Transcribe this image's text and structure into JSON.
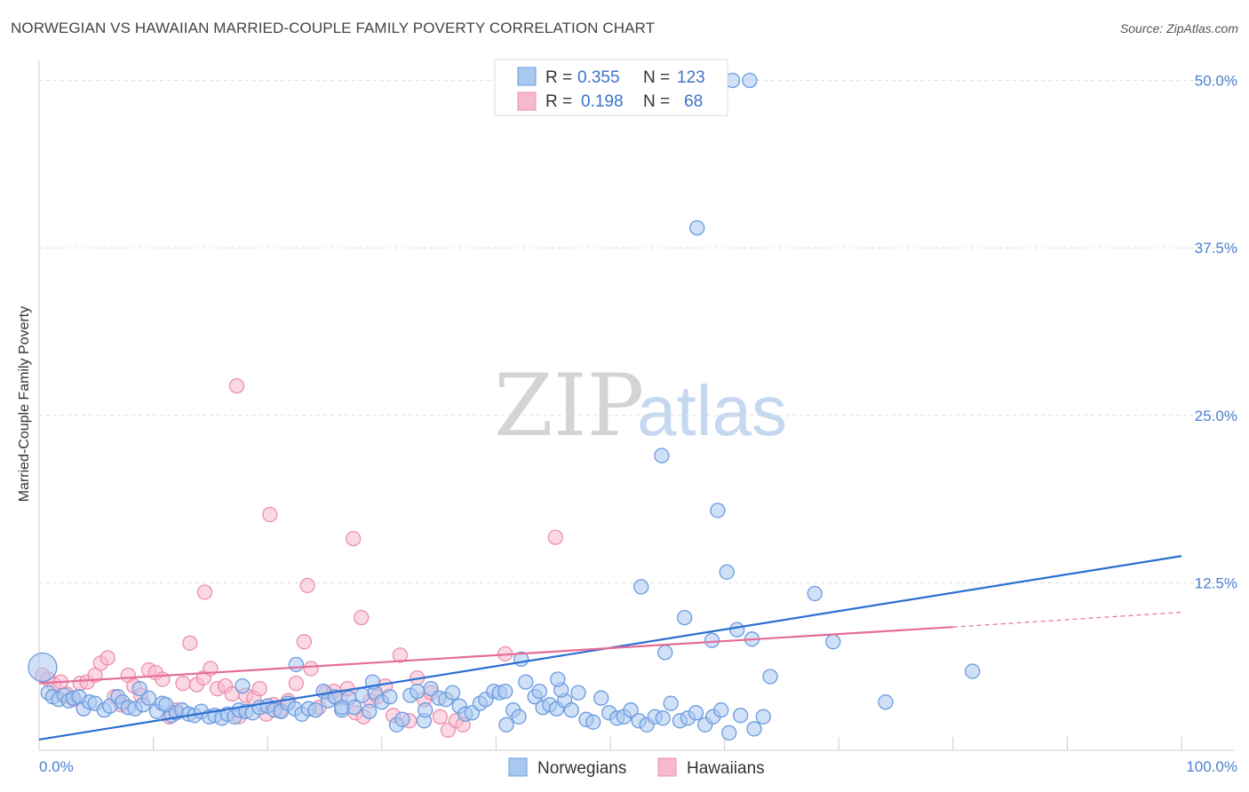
{
  "title": "NORWEGIAN VS HAWAIIAN MARRIED-COUPLE FAMILY POVERTY CORRELATION CHART",
  "source": "Source: ZipAtlas.com",
  "watermark": {
    "zip": "ZIP",
    "atlas": "atlas"
  },
  "colors": {
    "norwegian_fill": "#a9c8f0",
    "norwegian_stroke": "#6a9be0",
    "norwegian_line": "#2b6fd1",
    "hawaiian_fill": "#f7b9cd",
    "hawaiian_stroke": "#ec8eae",
    "hawaiian_line": "#e56d96",
    "tick_label": "#4a7fd0",
    "grid": "#dddddd"
  },
  "legend": {
    "rows": [
      {
        "r_label": "R =",
        "r_value": "0.355",
        "n_label": "N =",
        "n_value": "123"
      },
      {
        "r_label": "R =",
        "r_value": "0.198",
        "n_label": "N =",
        "n_value": "68"
      }
    ]
  },
  "bottom_legend": [
    "Norwegians",
    "Hawaiians"
  ],
  "chart_data": {
    "type": "scatter",
    "title": "NORWEGIAN VS HAWAIIAN MARRIED-COUPLE FAMILY POVERTY CORRELATION CHART",
    "xlabel": "",
    "ylabel": "Married-Couple Family Poverty",
    "xlim": [
      0,
      100
    ],
    "ylim": [
      0,
      51.5
    ],
    "x_tick_labels": [
      "0.0%",
      "100.0%"
    ],
    "y_ticks": [
      12.5,
      25.0,
      37.5,
      50.0
    ],
    "y_tick_labels": [
      "12.5%",
      "25.0%",
      "37.5%",
      "50.0%"
    ],
    "grid": true,
    "legend_position": "top-center",
    "series": [
      {
        "name": "Norwegians",
        "R": 0.355,
        "N": 123,
        "trend": {
          "x": [
            0,
            100
          ],
          "y": [
            0.8,
            14.5
          ]
        },
        "points": [
          [
            0.3,
            6.2
          ],
          [
            0.8,
            4.3
          ],
          [
            1.2,
            4.0
          ],
          [
            1.7,
            3.8
          ],
          [
            2.2,
            4.1
          ],
          [
            2.6,
            3.7
          ],
          [
            3.0,
            3.9
          ],
          [
            3.5,
            4.0
          ],
          [
            3.9,
            3.1
          ],
          [
            4.4,
            3.6
          ],
          [
            4.9,
            3.5
          ],
          [
            5.7,
            3.0
          ],
          [
            6.2,
            3.3
          ],
          [
            6.9,
            4.0
          ],
          [
            7.3,
            3.6
          ],
          [
            7.8,
            3.2
          ],
          [
            8.4,
            3.1
          ],
          [
            9.1,
            3.4
          ],
          [
            9.6,
            3.9
          ],
          [
            10.3,
            2.9
          ],
          [
            10.8,
            3.5
          ],
          [
            11.6,
            2.6
          ],
          [
            12.0,
            2.8
          ],
          [
            12.5,
            3.0
          ],
          [
            13.1,
            2.7
          ],
          [
            13.6,
            2.6
          ],
          [
            14.2,
            2.9
          ],
          [
            14.9,
            2.5
          ],
          [
            15.4,
            2.6
          ],
          [
            16.0,
            2.4
          ],
          [
            16.5,
            2.7
          ],
          [
            17.1,
            2.5
          ],
          [
            17.5,
            3.0
          ],
          [
            18.1,
            2.9
          ],
          [
            18.7,
            2.8
          ],
          [
            19.3,
            3.2
          ],
          [
            20.0,
            3.3
          ],
          [
            20.6,
            3.0
          ],
          [
            21.2,
            2.9
          ],
          [
            21.8,
            3.5
          ],
          [
            22.4,
            3.1
          ],
          [
            23.0,
            2.7
          ],
          [
            23.6,
            3.1
          ],
          [
            24.2,
            3.0
          ],
          [
            24.9,
            4.4
          ],
          [
            25.3,
            3.7
          ],
          [
            25.9,
            4.0
          ],
          [
            26.5,
            3.0
          ],
          [
            27.1,
            3.9
          ],
          [
            27.6,
            3.2
          ],
          [
            28.3,
            4.1
          ],
          [
            28.9,
            2.9
          ],
          [
            29.4,
            4.3
          ],
          [
            30.0,
            3.6
          ],
          [
            30.7,
            4.0
          ],
          [
            31.3,
            1.9
          ],
          [
            31.8,
            2.3
          ],
          [
            32.5,
            4.1
          ],
          [
            33.1,
            4.4
          ],
          [
            33.7,
            2.2
          ],
          [
            34.3,
            4.6
          ],
          [
            35.0,
            3.9
          ],
          [
            35.6,
            3.8
          ],
          [
            36.2,
            4.3
          ],
          [
            36.8,
            3.3
          ],
          [
            37.3,
            2.7
          ],
          [
            37.9,
            2.8
          ],
          [
            38.6,
            3.5
          ],
          [
            39.1,
            3.8
          ],
          [
            39.8,
            4.4
          ],
          [
            40.3,
            4.3
          ],
          [
            40.9,
            1.9
          ],
          [
            41.5,
            3.0
          ],
          [
            42.0,
            2.5
          ],
          [
            42.6,
            5.1
          ],
          [
            43.4,
            4.0
          ],
          [
            44.1,
            3.2
          ],
          [
            44.7,
            3.4
          ],
          [
            45.3,
            3.1
          ],
          [
            46.0,
            3.7
          ],
          [
            46.6,
            3.0
          ],
          [
            47.2,
            4.3
          ],
          [
            47.9,
            2.3
          ],
          [
            48.5,
            2.1
          ],
          [
            49.2,
            3.9
          ],
          [
            49.9,
            2.8
          ],
          [
            50.6,
            2.4
          ],
          [
            51.2,
            2.5
          ],
          [
            51.8,
            3.0
          ],
          [
            52.5,
            2.2
          ],
          [
            53.2,
            1.9
          ],
          [
            53.9,
            2.5
          ],
          [
            54.6,
            2.4
          ],
          [
            55.3,
            3.5
          ],
          [
            56.1,
            2.2
          ],
          [
            56.8,
            2.4
          ],
          [
            57.5,
            2.8
          ],
          [
            58.3,
            1.9
          ],
          [
            59.0,
            2.5
          ],
          [
            59.7,
            3.0
          ],
          [
            60.4,
            1.3
          ],
          [
            61.4,
            2.6
          ],
          [
            62.6,
            1.6
          ],
          [
            63.4,
            2.5
          ],
          [
            29.2,
            5.1
          ],
          [
            40.8,
            4.4
          ],
          [
            22.5,
            6.4
          ],
          [
            17.8,
            4.8
          ],
          [
            8.8,
            4.6
          ],
          [
            11.1,
            3.4
          ],
          [
            26.5,
            3.2
          ],
          [
            33.8,
            3.0
          ],
          [
            43.8,
            4.4
          ],
          [
            45.7,
            4.5
          ],
          [
            56.5,
            9.9
          ],
          [
            58.9,
            8.2
          ],
          [
            61.1,
            9.0
          ],
          [
            62.4,
            8.3
          ],
          [
            59.4,
            17.9
          ],
          [
            57.6,
            39.0
          ],
          [
            60.7,
            50.0
          ],
          [
            62.2,
            50.0
          ],
          [
            54.5,
            22.0
          ],
          [
            52.7,
            12.2
          ],
          [
            60.2,
            13.3
          ],
          [
            67.9,
            11.7
          ],
          [
            69.5,
            8.1
          ],
          [
            54.8,
            7.3
          ],
          [
            45.4,
            5.3
          ],
          [
            74.1,
            3.6
          ],
          [
            81.7,
            5.9
          ],
          [
            64.0,
            5.5
          ],
          [
            42.2,
            6.8
          ]
        ]
      },
      {
        "name": "Hawaiians",
        "R": 0.198,
        "N": 68,
        "trend": {
          "x": [
            0,
            80
          ],
          "y": [
            5.0,
            9.2
          ],
          "dashed_to": [
            100,
            10.3
          ]
        },
        "points": [
          [
            0.3,
            5.6
          ],
          [
            0.8,
            5.3
          ],
          [
            1.3,
            4.9
          ],
          [
            1.9,
            5.1
          ],
          [
            2.4,
            4.2
          ],
          [
            3.0,
            3.8
          ],
          [
            3.6,
            5.0
          ],
          [
            4.2,
            5.1
          ],
          [
            4.9,
            5.6
          ],
          [
            5.4,
            6.5
          ],
          [
            6.0,
            6.9
          ],
          [
            6.6,
            4.0
          ],
          [
            7.2,
            3.4
          ],
          [
            7.8,
            5.6
          ],
          [
            8.3,
            4.8
          ],
          [
            8.9,
            4.1
          ],
          [
            9.6,
            6.0
          ],
          [
            10.2,
            5.8
          ],
          [
            10.8,
            5.3
          ],
          [
            11.4,
            2.5
          ],
          [
            12.0,
            3.0
          ],
          [
            12.6,
            5.0
          ],
          [
            13.2,
            8.0
          ],
          [
            13.8,
            4.9
          ],
          [
            14.4,
            5.4
          ],
          [
            15.0,
            6.1
          ],
          [
            15.6,
            4.6
          ],
          [
            16.3,
            4.8
          ],
          [
            16.9,
            4.2
          ],
          [
            17.5,
            2.5
          ],
          [
            18.1,
            4.1
          ],
          [
            18.8,
            3.9
          ],
          [
            19.3,
            4.6
          ],
          [
            19.9,
            2.7
          ],
          [
            20.5,
            3.4
          ],
          [
            21.1,
            3.0
          ],
          [
            21.8,
            3.7
          ],
          [
            22.5,
            5.0
          ],
          [
            23.2,
            8.1
          ],
          [
            23.8,
            6.1
          ],
          [
            24.5,
            3.2
          ],
          [
            25.1,
            4.3
          ],
          [
            25.8,
            4.4
          ],
          [
            26.4,
            3.9
          ],
          [
            27.0,
            4.6
          ],
          [
            27.7,
            2.8
          ],
          [
            28.4,
            2.5
          ],
          [
            29.0,
            3.7
          ],
          [
            29.6,
            4.0
          ],
          [
            30.3,
            4.8
          ],
          [
            31.0,
            2.6
          ],
          [
            31.6,
            7.1
          ],
          [
            32.4,
            2.2
          ],
          [
            33.1,
            5.4
          ],
          [
            33.7,
            3.8
          ],
          [
            34.3,
            4.3
          ],
          [
            35.1,
            2.5
          ],
          [
            35.8,
            1.5
          ],
          [
            36.5,
            2.2
          ],
          [
            37.1,
            1.9
          ],
          [
            17.3,
            27.2
          ],
          [
            20.2,
            17.6
          ],
          [
            27.5,
            15.8
          ],
          [
            14.5,
            11.8
          ],
          [
            23.5,
            12.3
          ],
          [
            28.2,
            9.9
          ],
          [
            40.8,
            7.2
          ],
          [
            45.2,
            15.9
          ]
        ]
      }
    ]
  }
}
